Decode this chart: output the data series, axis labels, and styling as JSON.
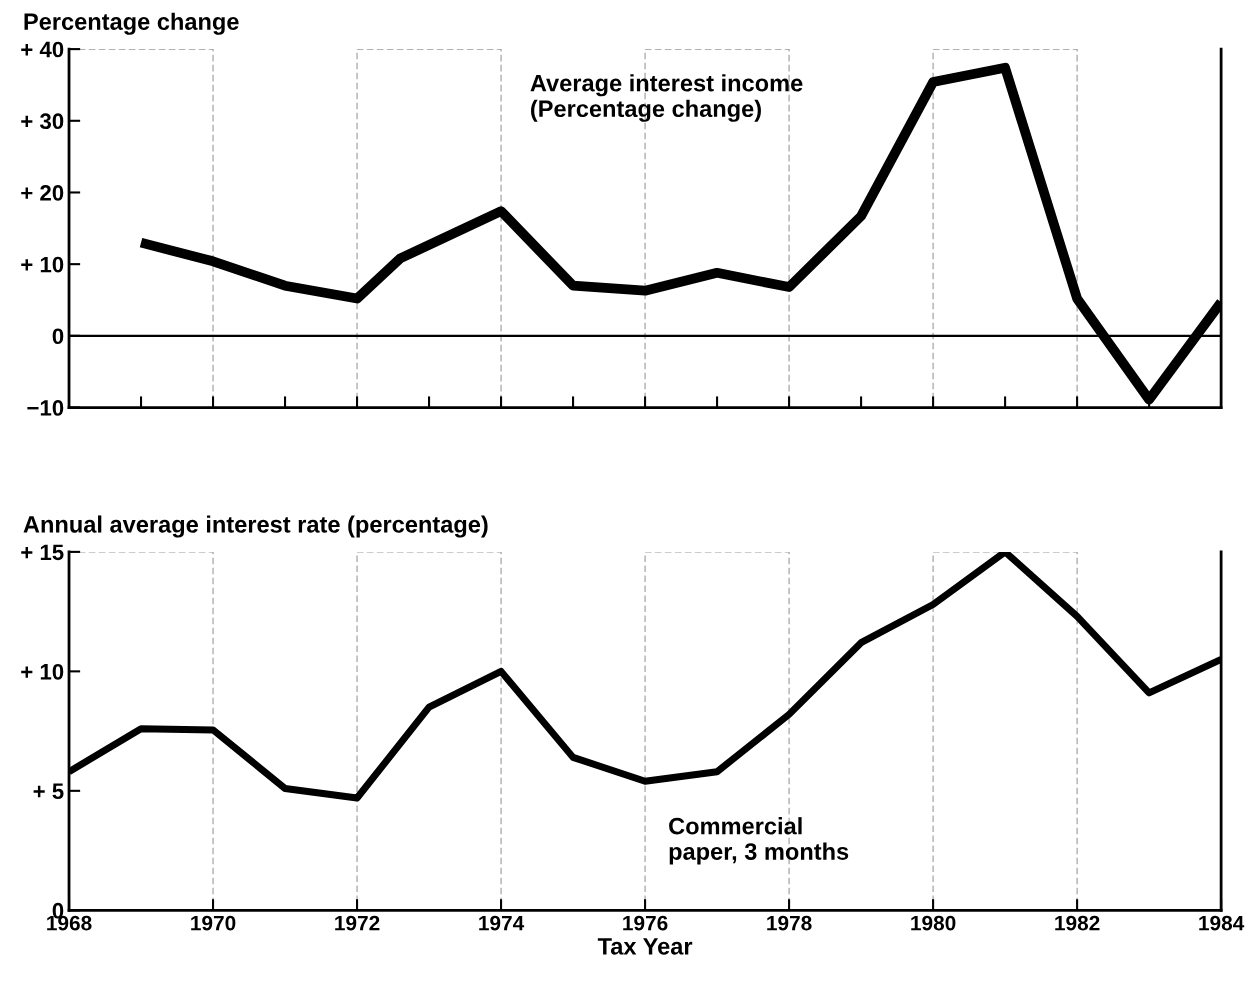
{
  "chart_data": [
    {
      "type": "line",
      "ylabel": "Percentage change",
      "xlim": [
        1968,
        1984
      ],
      "ylim": [
        -10,
        40
      ],
      "xticks": [
        {
          "value": 1969,
          "label": null
        },
        {
          "value": 1970,
          "label": null
        },
        {
          "value": 1971,
          "label": null
        },
        {
          "value": 1972,
          "label": null
        },
        {
          "value": 1973,
          "label": null
        },
        {
          "value": 1974,
          "label": null
        },
        {
          "value": 1975,
          "label": null
        },
        {
          "value": 1976,
          "label": null
        },
        {
          "value": 1977,
          "label": null
        },
        {
          "value": 1978,
          "label": null
        },
        {
          "value": 1979,
          "label": null
        },
        {
          "value": 1980,
          "label": null
        },
        {
          "value": 1981,
          "label": null
        },
        {
          "value": 1982,
          "label": null
        },
        {
          "value": 1983,
          "label": null
        }
      ],
      "yticks": [
        {
          "value": -10,
          "label": "−10"
        },
        {
          "value": 0,
          "label": "0"
        },
        {
          "value": 10,
          "label": "+ 10"
        },
        {
          "value": 20,
          "label": "+ 20"
        },
        {
          "value": 30,
          "label": "+ 30"
        },
        {
          "value": 40,
          "label": "+ 40"
        }
      ],
      "tick_labels": "y",
      "grid": false,
      "legend": false,
      "ref_lines": [
        {
          "axis": "y",
          "value": 0,
          "color": "#000000"
        }
      ],
      "bands": [
        {
          "axis": "x",
          "from": 1968,
          "to": 1970,
          "color": "#ffffff"
        },
        {
          "axis": "x",
          "from": 1972,
          "to": 1974,
          "color": "#ffffff"
        },
        {
          "axis": "x",
          "from": 1976,
          "to": 1978,
          "color": "#ffffff"
        },
        {
          "axis": "x",
          "from": 1980,
          "to": 1982,
          "color": "#ffffff"
        }
      ],
      "series": [
        {
          "name": "Average interest income\n(Percentage change)",
          "color": "#000000",
          "x": [
            1969,
            1970,
            1971,
            1972,
            1972.6,
            1974,
            1975,
            1976,
            1977,
            1978,
            1979,
            1980,
            1981,
            1982,
            1983,
            1984
          ],
          "values": [
            13,
            10.4,
            7,
            5.2,
            10.8,
            17.4,
            7,
            6.3,
            8.8,
            6.8,
            16.7,
            35.4,
            37.4,
            5.2,
            -8.9,
            4.7
          ]
        }
      ]
    },
    {
      "type": "line",
      "ylabel": "Annual average interest rate (percentage)",
      "xlabel": "Tax Year",
      "xlim": [
        1968,
        1984
      ],
      "ylim": [
        0,
        15
      ],
      "xticks": [
        1968,
        1970,
        1972,
        1974,
        1976,
        1978,
        1980,
        1982,
        1984
      ],
      "yticks": [
        {
          "value": 0,
          "label": "0"
        },
        {
          "value": 5,
          "label": "+ 5"
        },
        {
          "value": 10,
          "label": "+ 10"
        },
        {
          "value": 15,
          "label": "+ 15"
        }
      ],
      "grid": false,
      "legend": false,
      "bands": [
        {
          "axis": "x",
          "from": 1968,
          "to": 1970,
          "color": "#ffffff"
        },
        {
          "axis": "x",
          "from": 1972,
          "to": 1974,
          "color": "#ffffff"
        },
        {
          "axis": "x",
          "from": 1976,
          "to": 1978,
          "color": "#ffffff"
        },
        {
          "axis": "x",
          "from": 1980,
          "to": 1982,
          "color": "#ffffff"
        }
      ],
      "series": [
        {
          "name": "Commercial\npaper, 3 months",
          "color": "#000000",
          "x": [
            1968,
            1969,
            1970,
            1971,
            1972,
            1973,
            1974,
            1975,
            1976,
            1977,
            1978,
            1979,
            1980,
            1981,
            1982,
            1983,
            1984
          ],
          "values": [
            5.8,
            7.6,
            7.55,
            5.1,
            4.7,
            8.5,
            10.0,
            6.4,
            5.4,
            5.8,
            8.2,
            11.2,
            12.8,
            15.0,
            12.3,
            9.1,
            10.5
          ]
        }
      ]
    }
  ]
}
